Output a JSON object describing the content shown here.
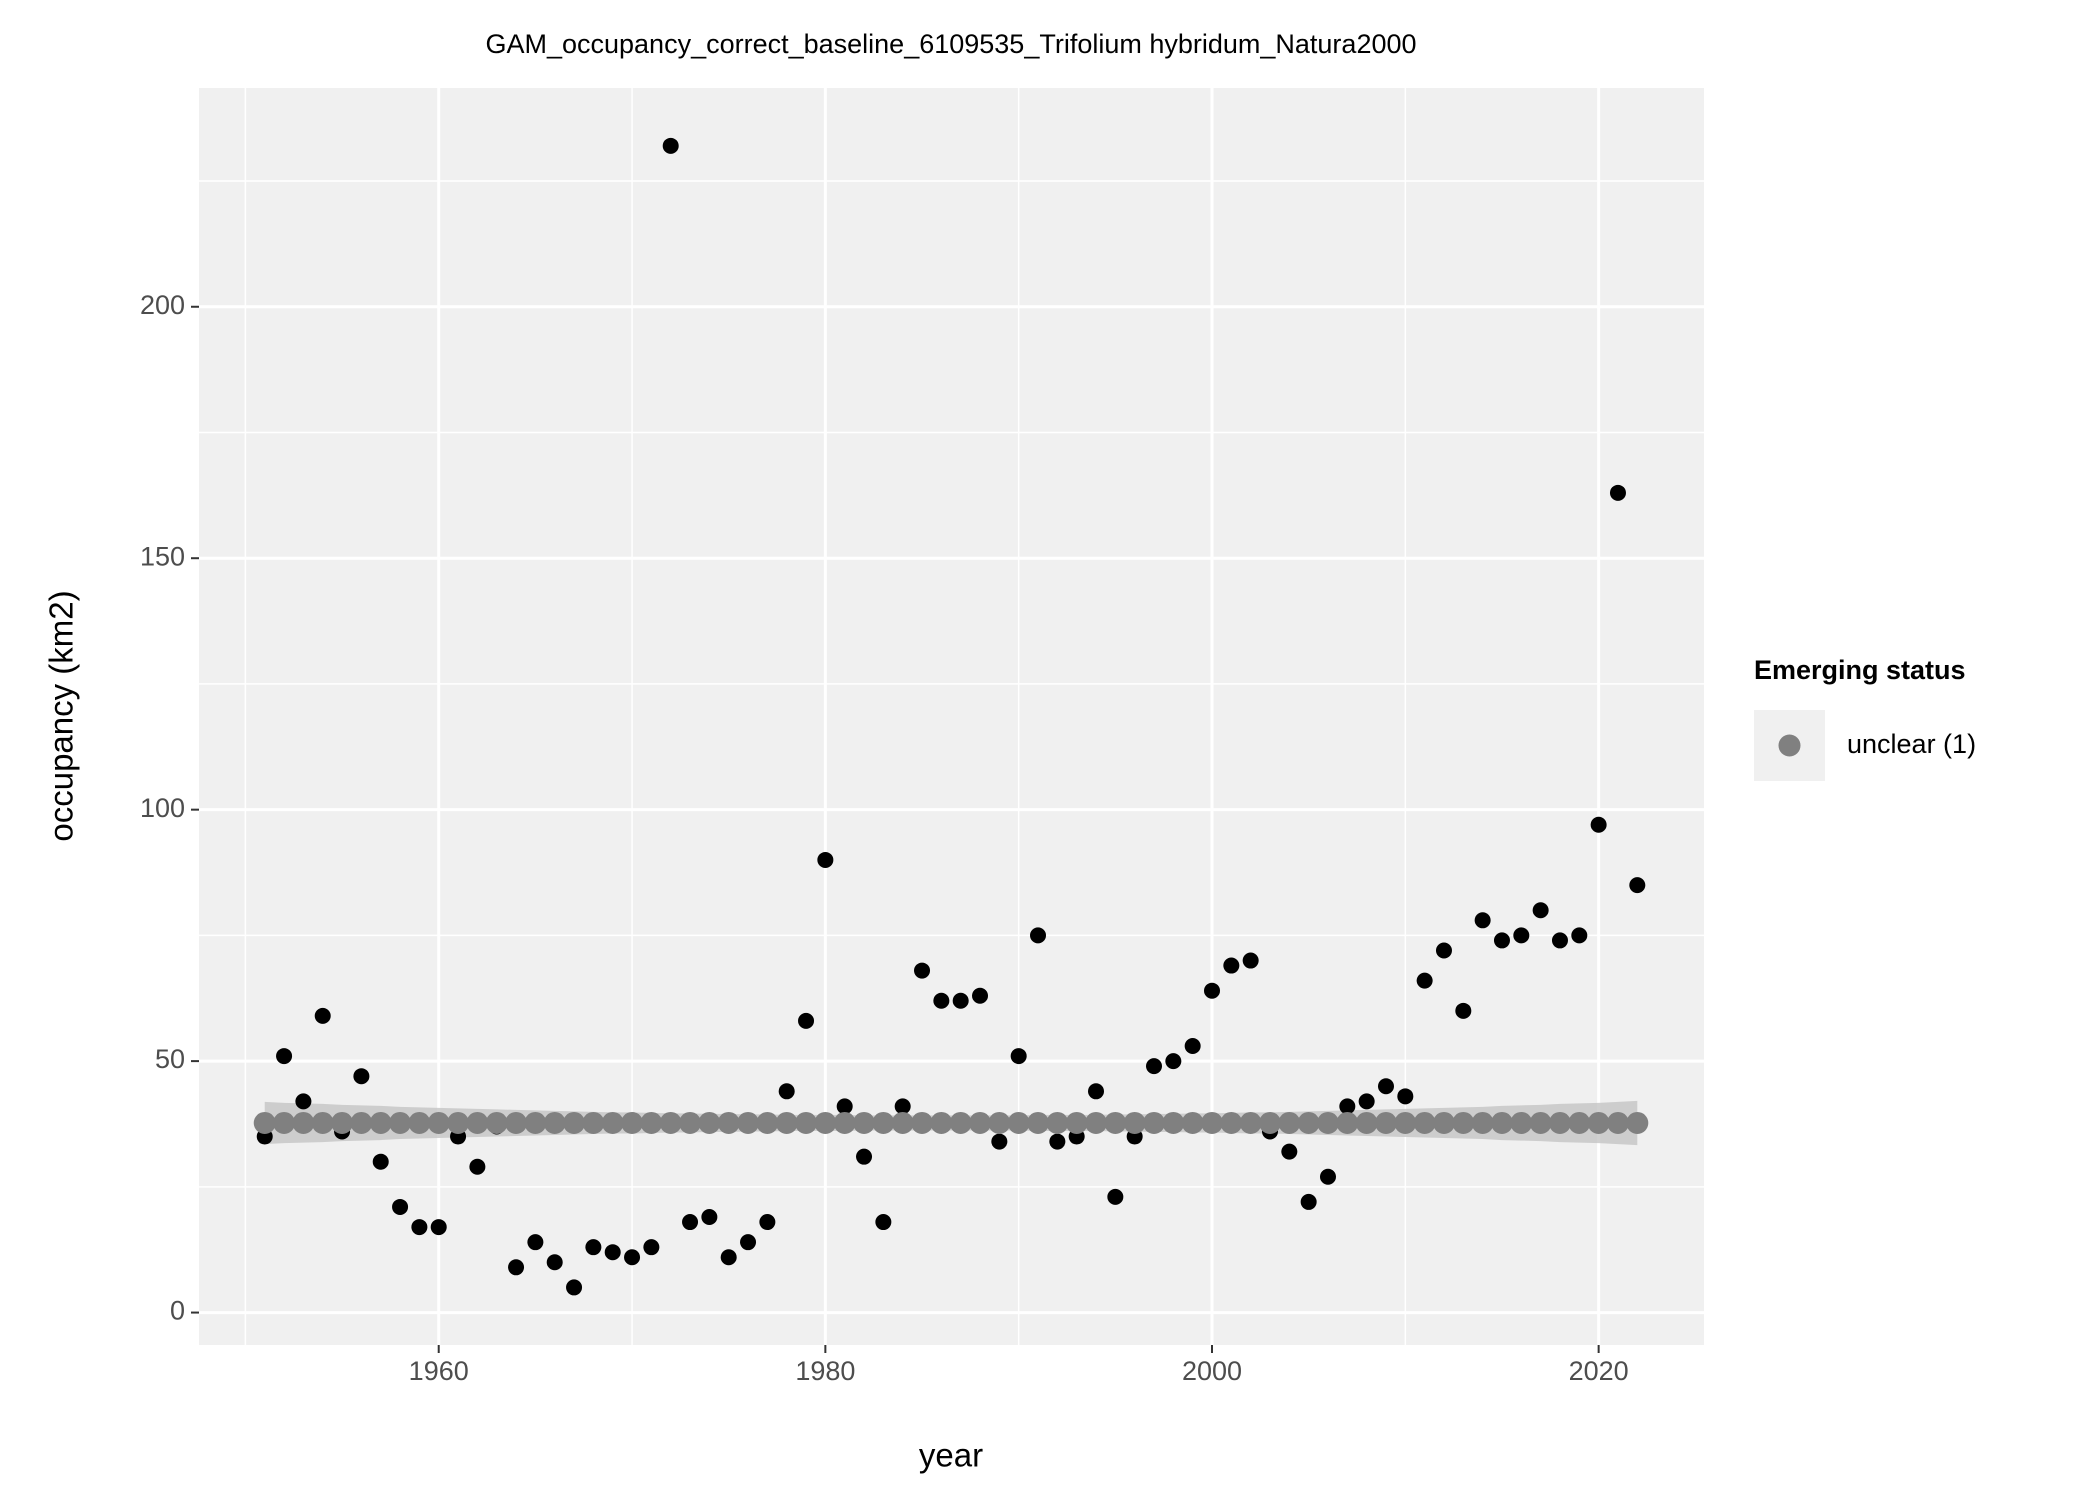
{
  "chart_data": {
    "type": "scatter",
    "title": "GAM_occupancy_correct_baseline_6109535_Trifolium hybridum_Natura2000",
    "x_label": "year",
    "y_label": "occupancy (km2)",
    "legend_title": "Emerging status",
    "legend_position": "right",
    "grid": true,
    "xlim": [
      1947.6,
      2025.45
    ],
    "ylim": [
      -6.45,
      243.5
    ],
    "xticks": [
      1960,
      1980,
      2000,
      2020
    ],
    "yticks": [
      0,
      50,
      100,
      150,
      200
    ],
    "x": [
      1951,
      1952,
      1953,
      1954,
      1955,
      1956,
      1957,
      1958,
      1959,
      1960,
      1961,
      1962,
      1963,
      1964,
      1965,
      1966,
      1967,
      1968,
      1969,
      1970,
      1971,
      1972,
      1973,
      1974,
      1975,
      1976,
      1977,
      1978,
      1979,
      1980,
      1981,
      1982,
      1983,
      1984,
      1985,
      1986,
      1987,
      1988,
      1989,
      1990,
      1991,
      1992,
      1993,
      1994,
      1995,
      1996,
      1997,
      1998,
      1999,
      2000,
      2001,
      2002,
      2003,
      2004,
      2005,
      2006,
      2007,
      2008,
      2009,
      2010,
      2011,
      2012,
      2013,
      2014,
      2015,
      2016,
      2017,
      2018,
      2019,
      2020,
      2021,
      2022
    ],
    "series": [
      {
        "color": "#000000",
        "values": [
          35,
          51,
          42,
          59,
          36,
          47,
          30,
          21,
          17,
          17,
          35,
          29,
          37,
          9,
          14,
          10,
          5,
          13,
          12,
          11,
          13,
          232,
          18,
          19,
          11,
          14,
          18,
          44,
          58,
          90,
          41,
          31,
          18,
          41,
          68,
          62,
          62,
          63,
          34,
          51,
          75,
          34,
          35,
          44,
          23,
          35,
          49,
          50,
          53,
          64,
          69,
          70,
          36,
          32,
          22,
          27,
          41,
          42,
          45,
          43,
          66,
          72,
          60,
          78,
          74,
          75,
          80,
          74,
          75,
          97,
          163,
          85
        ]
      },
      {
        "name": "unclear (1)",
        "color": "#808080",
        "band_color": "#c4c4c4",
        "values": [
          37.7,
          37.7,
          37.7,
          37.7,
          37.7,
          37.7,
          37.7,
          37.7,
          37.7,
          37.7,
          37.7,
          37.7,
          37.7,
          37.7,
          37.7,
          37.7,
          37.7,
          37.7,
          37.7,
          37.7,
          37.7,
          37.7,
          37.7,
          37.7,
          37.7,
          37.7,
          37.7,
          37.7,
          37.7,
          37.7,
          37.7,
          37.7,
          37.7,
          37.7,
          37.7,
          37.7,
          37.7,
          37.7,
          37.7,
          37.7,
          37.7,
          37.7,
          37.7,
          37.7,
          37.7,
          37.7,
          37.7,
          37.7,
          37.7,
          37.7,
          37.7,
          37.7,
          37.7,
          37.7,
          37.7,
          37.7,
          37.7,
          37.7,
          37.7,
          37.7,
          37.7,
          37.7,
          37.7,
          37.7,
          37.7,
          37.7,
          37.7,
          37.7,
          37.7,
          37.7,
          37.7,
          37.7
        ],
        "lower": [
          33.5,
          33.7,
          33.8,
          33.9,
          34.1,
          34.2,
          34.3,
          34.5,
          34.6,
          34.7,
          34.8,
          34.9,
          35.0,
          35.1,
          35.2,
          35.3,
          35.4,
          35.5,
          35.6,
          35.6,
          35.7,
          35.8,
          35.8,
          35.9,
          35.9,
          36.0,
          36.0,
          36.1,
          36.1,
          36.1,
          36.1,
          36.2,
          36.2,
          36.2,
          36.2,
          36.2,
          36.2,
          36.2,
          36.2,
          36.2,
          36.1,
          36.1,
          36.1,
          36.1,
          36.0,
          36.0,
          35.9,
          35.9,
          35.8,
          35.8,
          35.7,
          35.6,
          35.6,
          35.5,
          35.4,
          35.3,
          35.2,
          35.1,
          35.0,
          34.9,
          34.8,
          34.7,
          34.6,
          34.5,
          34.3,
          34.2,
          34.1,
          33.9,
          33.8,
          33.7,
          33.5,
          33.3
        ],
        "upper": [
          41.9,
          41.7,
          41.6,
          41.5,
          41.3,
          41.2,
          41.1,
          40.9,
          40.8,
          40.7,
          40.6,
          40.5,
          40.4,
          40.3,
          40.2,
          40.1,
          40.0,
          39.9,
          39.8,
          39.8,
          39.7,
          39.6,
          39.6,
          39.5,
          39.5,
          39.4,
          39.4,
          39.3,
          39.3,
          39.3,
          39.3,
          39.2,
          39.2,
          39.2,
          39.2,
          39.2,
          39.2,
          39.2,
          39.2,
          39.2,
          39.3,
          39.3,
          39.3,
          39.3,
          39.4,
          39.4,
          39.5,
          39.5,
          39.6,
          39.6,
          39.7,
          39.8,
          39.8,
          39.9,
          40.0,
          40.1,
          40.2,
          40.3,
          40.4,
          40.5,
          40.6,
          40.7,
          40.8,
          40.9,
          41.1,
          41.2,
          41.3,
          41.5,
          41.6,
          41.7,
          41.9,
          42.1
        ]
      }
    ]
  }
}
